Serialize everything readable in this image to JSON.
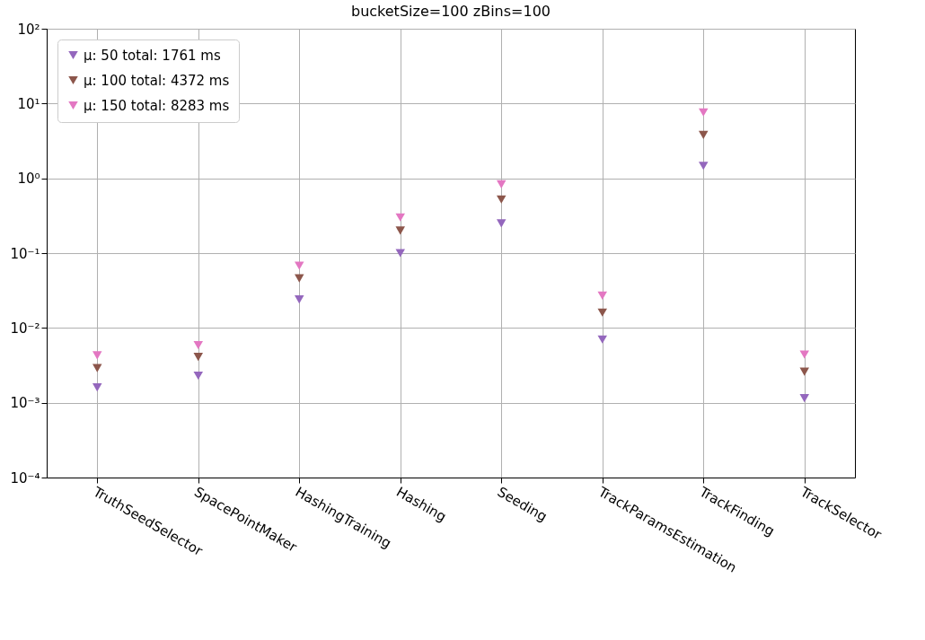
{
  "chart_data": {
    "type": "scatter",
    "title": "bucketSize=100 zBins=100",
    "categories": [
      "TruthSeedSelector",
      "SpacePointMaker",
      "HashingTraining",
      "Hashing",
      "Seeding",
      "TrackParamsEstimation",
      "TrackFinding",
      "TrackSelector"
    ],
    "series": [
      {
        "name": "μ: 50 total: 1761 ms",
        "color": "#9467bd",
        "values": [
          0.0016,
          0.0023,
          0.024,
          0.1,
          0.25,
          0.007,
          1.47,
          0.00115
        ]
      },
      {
        "name": "μ: 100 total: 4372 ms",
        "color": "#8c564b",
        "values": [
          0.0029,
          0.0041,
          0.046,
          0.2,
          0.52,
          0.016,
          3.8,
          0.0026
        ]
      },
      {
        "name": "μ: 150 total: 8283 ms",
        "color": "#e377c2",
        "values": [
          0.0043,
          0.0059,
          0.068,
          0.3,
          0.83,
          0.027,
          7.6,
          0.0044
        ]
      }
    ],
    "ylim": [
      0.0001,
      100
    ],
    "yticks": [
      {
        "value": 0.0001,
        "label": "10⁻⁴"
      },
      {
        "value": 0.001,
        "label": "10⁻³"
      },
      {
        "value": 0.01,
        "label": "10⁻²"
      },
      {
        "value": 0.1,
        "label": "10⁻¹"
      },
      {
        "value": 1,
        "label": "10⁰"
      },
      {
        "value": 10,
        "label": "10¹"
      },
      {
        "value": 100,
        "label": "10²"
      }
    ],
    "log": "y",
    "grid": true,
    "legend": "top left",
    "marker": "triangle"
  }
}
